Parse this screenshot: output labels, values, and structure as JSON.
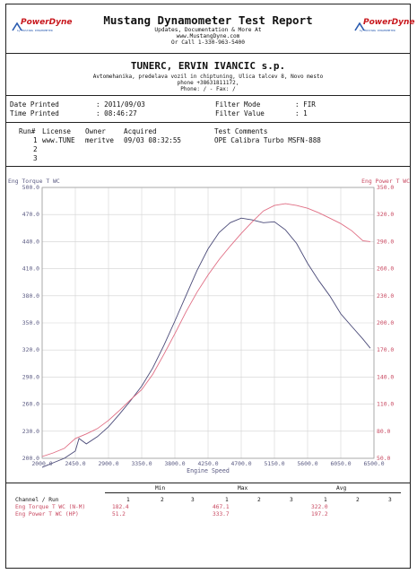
{
  "header": {
    "title": "Mustang Dynamometer Test Report",
    "sub1": "Updates, Documentation & More At",
    "sub2": "www.MustangDyne.com",
    "sub3": "Or Call 1-330-963-5400",
    "logo_text": "PowerDyne",
    "logo_tag": "by MUSTANG DYNAMOMETER"
  },
  "shop": {
    "name": "TUNERC, ERVIN IVANCIC s.p.",
    "line1": "Avtomehanika, predelava vozil in chiptuning, Ulica talcev 8, Novo mesto",
    "line2": "phone +38631811172,",
    "line3": "Phone:  /  - Fax:  /"
  },
  "info": {
    "date_label": "Date Printed",
    "date_value": ": 2011/09/03",
    "time_label": "Time Printed",
    "time_value": ": 08:46:27",
    "filter_mode_label": "Filter Mode",
    "filter_mode_value": ":  FIR",
    "filter_value_label": "Filter Value",
    "filter_value_value": ":  1"
  },
  "runs": {
    "headers": [
      "Run#",
      "License",
      "Owner",
      "Acquired",
      "Test Comments"
    ],
    "rows": [
      {
        "run": "1",
        "license": "www.TUNE",
        "owner": "meritve",
        "acquired": "09/03 08:32:55",
        "comments": "OPE Calibra Turbo MSFN-888"
      },
      {
        "run": "2",
        "license": "",
        "owner": "",
        "acquired": "",
        "comments": ""
      },
      {
        "run": "3",
        "license": "",
        "owner": "",
        "acquired": "",
        "comments": ""
      }
    ]
  },
  "colors": {
    "torque": "#4a4a78",
    "power": "#e06e84",
    "grid": "#d2d2d2",
    "left_axis_text": "#5a5a82",
    "right_axis_text": "#c84860"
  },
  "chart_data": {
    "type": "line",
    "xlabel": "Engine Speed",
    "ylabel_left": "Eng Torque T WC",
    "ylabel_right": "Eng Power T WC",
    "xlim": [
      2000,
      6500
    ],
    "ylim_left": [
      200,
      500
    ],
    "ylim_right": [
      50,
      350
    ],
    "x_ticks": [
      "2000.0",
      "2450.0",
      "2900.0",
      "3350.0",
      "3800.0",
      "4250.0",
      "4700.0",
      "5150.0",
      "5600.0",
      "6050.0",
      "6500.0"
    ],
    "y_ticks_left": [
      "200.0",
      "230.0",
      "260.0",
      "290.0",
      "320.0",
      "350.0",
      "380.0",
      "410.0",
      "440.0",
      "470.0",
      "500.0"
    ],
    "y_ticks_right": [
      "50.0",
      "80.0",
      "110.0",
      "140.0",
      "170.0",
      "200.0",
      "230.0",
      "260.0",
      "290.0",
      "320.0",
      "350.0"
    ],
    "grid": true,
    "series": [
      {
        "name": "Eng Torque T WC",
        "axis": "left",
        "x": [
          2000,
          2150,
          2300,
          2450,
          2500,
          2600,
          2750,
          2900,
          3050,
          3200,
          3350,
          3500,
          3650,
          3800,
          3950,
          4100,
          4250,
          4400,
          4550,
          4700,
          4850,
          5000,
          5150,
          5300,
          5450,
          5600,
          5750,
          5900,
          6050,
          6200,
          6350,
          6450
        ],
        "y": [
          190,
          195,
          200,
          208,
          222,
          216,
          224,
          235,
          249,
          264,
          280,
          300,
          325,
          352,
          380,
          408,
          432,
          450,
          461,
          466,
          464,
          461,
          462,
          453,
          438,
          416,
          397,
          380,
          360,
          346,
          332,
          322
        ]
      },
      {
        "name": "Eng Power T WC",
        "axis": "right",
        "x": [
          2000,
          2150,
          2300,
          2450,
          2600,
          2750,
          2900,
          3050,
          3200,
          3350,
          3500,
          3650,
          3800,
          3950,
          4100,
          4250,
          4400,
          4550,
          4700,
          4850,
          5000,
          5150,
          5300,
          5450,
          5600,
          5750,
          5900,
          6050,
          6200,
          6350,
          6450
        ],
        "y": [
          52,
          56,
          61,
          72,
          77,
          83,
          92,
          103,
          115,
          126,
          143,
          165,
          188,
          212,
          234,
          253,
          270,
          285,
          299,
          312,
          324,
          330,
          332,
          330,
          327,
          322,
          316,
          310,
          302,
          291,
          290
        ]
      }
    ]
  },
  "table": {
    "group_headers": [
      "Min",
      "Max",
      "Avg"
    ],
    "channel_label": "Channel / Run",
    "run_numbers": [
      "1",
      "2",
      "3"
    ],
    "rows": [
      {
        "label": "Eng Torque T WC (N-M)",
        "min": "182.4",
        "max": "467.1",
        "avg": "322.0"
      },
      {
        "label": "Eng Power T WC (HP)",
        "min": "51.2",
        "max": "333.7",
        "avg": "197.2"
      }
    ]
  }
}
